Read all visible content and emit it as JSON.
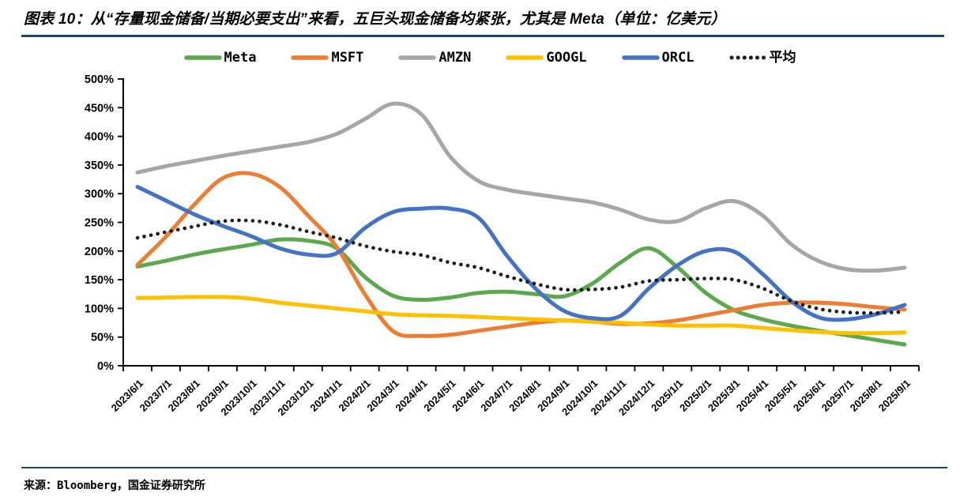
{
  "report": {
    "title": "图表 10：从“存量现金储备/当期必要支出”来看，五巨头现金储备均紧张，尤其是 Meta（单位：亿美元）",
    "source": "来源：Bloomberg，国金证券研究所"
  },
  "theme": {
    "rule_color": "#1B4A5F",
    "axis_color": "#000000",
    "background": "#FFFFFF"
  },
  "chart_data": {
    "type": "line",
    "title": "存量现金储备/当期必要支出",
    "unit": "%",
    "grid": false,
    "legend_position": "top",
    "ylim": [
      0,
      500
    ],
    "ytick_step": 50,
    "ytick_labels": [
      "0%",
      "50%",
      "100%",
      "150%",
      "200%",
      "250%",
      "300%",
      "350%",
      "400%",
      "450%",
      "500%"
    ],
    "categories": [
      "2023/6/1",
      "2023/7/1",
      "2023/8/1",
      "2023/9/1",
      "2023/10/1",
      "2023/11/1",
      "2023/12/1",
      "2024/1/1",
      "2024/2/1",
      "2024/3/1",
      "2024/4/1",
      "2024/5/1",
      "2024/6/1",
      "2024/7/1",
      "2024/8/1",
      "2024/9/1",
      "2024/10/1",
      "2024/11/1",
      "2024/12/1",
      "2025/1/1",
      "2025/2/1",
      "2025/3/1",
      "2025/4/1",
      "2025/5/1",
      "2025/6/1",
      "2025/7/1",
      "2025/8/1",
      "2025/9/1"
    ],
    "series": [
      {
        "name": "Meta",
        "color": "#5BA84D",
        "style": "solid",
        "values": [
          173,
          183,
          194,
          203,
          211,
          220,
          218,
          205,
          155,
          122,
          115,
          119,
          127,
          129,
          125,
          121,
          143,
          180,
          205,
          172,
          127,
          97,
          81,
          70,
          61,
          53,
          45,
          37
        ]
      },
      {
        "name": "MSFT",
        "color": "#ED7D31",
        "style": "solid",
        "values": [
          176,
          225,
          281,
          327,
          335,
          312,
          262,
          208,
          125,
          60,
          52,
          54,
          61,
          68,
          75,
          79,
          77,
          73,
          74,
          79,
          88,
          97,
          106,
          110,
          110,
          107,
          102,
          98
        ]
      },
      {
        "name": "AMZN",
        "color": "#A6A6A6",
        "style": "solid",
        "values": [
          337,
          348,
          357,
          366,
          374,
          382,
          390,
          404,
          430,
          457,
          438,
          365,
          322,
          307,
          299,
          292,
          285,
          272,
          255,
          252,
          275,
          287,
          262,
          212,
          182,
          168,
          166,
          171
        ]
      },
      {
        "name": "GOOGL",
        "color": "#FFC000",
        "style": "solid",
        "values": [
          118,
          119,
          120,
          120,
          117,
          110,
          105,
          100,
          95,
          90,
          88,
          87,
          85,
          83,
          81,
          79,
          77,
          75,
          72,
          70,
          70,
          70,
          66,
          62,
          59,
          57,
          57,
          58
        ]
      },
      {
        "name": "ORCL",
        "color": "#4472C4",
        "style": "solid",
        "values": [
          312,
          288,
          264,
          244,
          226,
          205,
          194,
          196,
          240,
          268,
          274,
          274,
          258,
          192,
          135,
          96,
          83,
          87,
          135,
          175,
          200,
          199,
          160,
          113,
          84,
          81,
          90,
          106
        ]
      },
      {
        "name": "平均",
        "color": "#1A1A1A",
        "style": "dotted",
        "values": [
          223,
          233,
          243,
          252,
          253,
          246,
          234,
          223,
          209,
          199,
          193,
          180,
          171,
          156,
          143,
          133,
          133,
          137,
          148,
          150,
          152,
          150,
          135,
          113,
          99,
          93,
          92,
          94
        ]
      }
    ]
  }
}
